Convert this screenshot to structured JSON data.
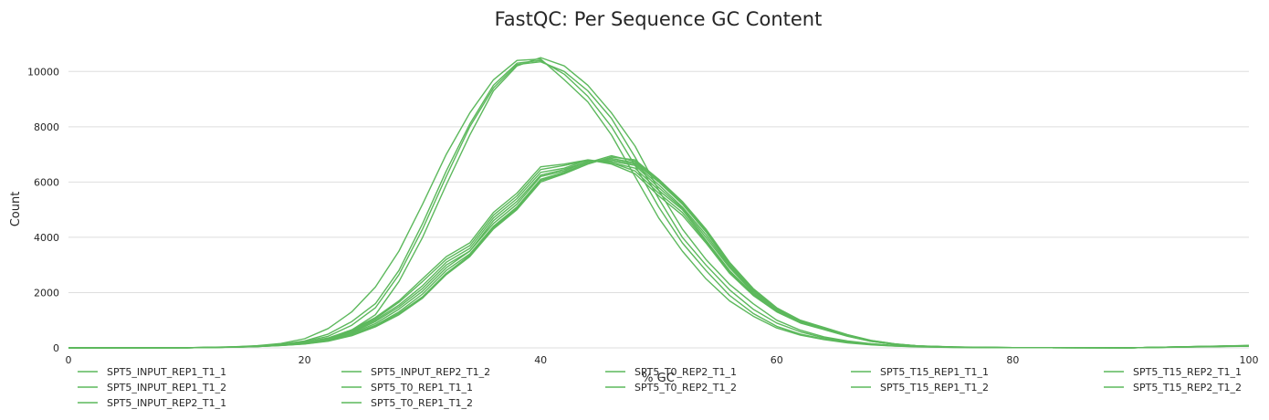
{
  "chart_data": {
    "type": "line",
    "title": "FastQC: Per Sequence GC Content",
    "xlabel": "% GC",
    "ylabel": "Count",
    "xlim": [
      0,
      100
    ],
    "ylim": [
      0,
      11000
    ],
    "xticks": [
      0,
      20,
      40,
      60,
      80,
      100
    ],
    "yticks": [
      0,
      2000,
      4000,
      6000,
      8000,
      10000
    ],
    "grid": true,
    "legend_position": "bottom",
    "line_color": "#5cb85c",
    "series": [
      {
        "name": "SPT5_INPUT_REP1_T1_1",
        "x": [
          0,
          10,
          14,
          16,
          18,
          20,
          22,
          24,
          26,
          28,
          30,
          32,
          34,
          36,
          38,
          40,
          42,
          44,
          46,
          48,
          50,
          52,
          54,
          56,
          58,
          60,
          62,
          64,
          66,
          68,
          70,
          72,
          75,
          80,
          90,
          100
        ],
        "y": [
          0,
          5,
          30,
          60,
          110,
          200,
          330,
          650,
          1200,
          2400,
          4000,
          5900,
          7700,
          9300,
          10200,
          10500,
          10200,
          9500,
          8500,
          7300,
          5700,
          4300,
          3200,
          2300,
          1600,
          1000,
          640,
          400,
          250,
          150,
          90,
          50,
          25,
          8,
          2,
          90
        ]
      },
      {
        "name": "SPT5_INPUT_REP1_T1_2",
        "x": [
          0,
          10,
          14,
          16,
          18,
          20,
          22,
          24,
          26,
          28,
          30,
          32,
          34,
          36,
          38,
          40,
          42,
          44,
          46,
          48,
          50,
          52,
          54,
          56,
          58,
          60,
          62,
          64,
          66,
          68,
          70,
          72,
          75,
          80,
          90,
          100
        ],
        "y": [
          0,
          5,
          35,
          70,
          130,
          250,
          500,
          950,
          1600,
          2800,
          4500,
          6400,
          8100,
          9500,
          10300,
          10400,
          9900,
          9100,
          8000,
          6600,
          5100,
          3800,
          2800,
          1900,
          1250,
          780,
          500,
          320,
          200,
          120,
          70,
          40,
          20,
          6,
          2,
          60
        ]
      },
      {
        "name": "SPT5_INPUT_REP2_T1_1",
        "x": [
          0,
          10,
          14,
          16,
          18,
          20,
          22,
          24,
          26,
          28,
          30,
          32,
          34,
          36,
          38,
          40,
          42,
          44,
          46,
          48,
          50,
          52,
          54,
          56,
          58,
          60,
          62,
          64,
          66,
          68,
          70,
          72,
          75,
          80,
          90,
          100
        ],
        "y": [
          0,
          5,
          40,
          80,
          160,
          330,
          700,
          1300,
          2200,
          3500,
          5200,
          7000,
          8500,
          9700,
          10400,
          10450,
          9700,
          8900,
          7700,
          6200,
          4700,
          3500,
          2500,
          1700,
          1150,
          720,
          460,
          300,
          180,
          110,
          65,
          35,
          18,
          6,
          2,
          80
        ]
      },
      {
        "name": "SPT5_INPUT_REP2_T1_2",
        "x": [
          0,
          10,
          14,
          16,
          18,
          20,
          22,
          24,
          26,
          28,
          30,
          32,
          34,
          36,
          38,
          40,
          42,
          44,
          46,
          48,
          50,
          52,
          54,
          56,
          58,
          60,
          62,
          64,
          66,
          68,
          70,
          72,
          75,
          80,
          90,
          100
        ],
        "y": [
          0,
          5,
          32,
          65,
          120,
          230,
          420,
          820,
          1450,
          2650,
          4300,
          6200,
          8000,
          9400,
          10250,
          10350,
          10000,
          9300,
          8300,
          6900,
          5400,
          4000,
          3000,
          2100,
          1400,
          900,
          580,
          360,
          220,
          130,
          80,
          45,
          22,
          7,
          2,
          70
        ]
      },
      {
        "name": "SPT5_T0_REP1_T1_1",
        "x": [
          0,
          10,
          14,
          16,
          18,
          20,
          22,
          24,
          26,
          28,
          30,
          32,
          34,
          36,
          38,
          40,
          42,
          44,
          46,
          48,
          50,
          52,
          54,
          56,
          58,
          60,
          62,
          64,
          66,
          68,
          70,
          72,
          75,
          80,
          90,
          100
        ],
        "y": [
          0,
          3,
          25,
          50,
          90,
          150,
          260,
          480,
          820,
          1300,
          1950,
          2800,
          3400,
          4400,
          5100,
          6100,
          6350,
          6700,
          6850,
          6700,
          6000,
          5200,
          4200,
          3000,
          2100,
          1400,
          980,
          720,
          460,
          260,
          140,
          70,
          30,
          9,
          2,
          80
        ]
      },
      {
        "name": "SPT5_T0_REP1_T1_2",
        "x": [
          0,
          10,
          14,
          16,
          18,
          20,
          22,
          24,
          26,
          28,
          30,
          32,
          34,
          36,
          38,
          40,
          42,
          44,
          46,
          48,
          50,
          52,
          54,
          56,
          58,
          60,
          62,
          64,
          66,
          68,
          70,
          72,
          75,
          80,
          90,
          100
        ],
        "y": [
          0,
          3,
          26,
          52,
          95,
          160,
          280,
          520,
          880,
          1400,
          2050,
          2900,
          3500,
          4500,
          5200,
          6200,
          6400,
          6750,
          6800,
          6650,
          5900,
          5100,
          4100,
          2950,
          2050,
          1380,
          960,
          700,
          450,
          250,
          135,
          68,
          30,
          9,
          2,
          70
        ]
      },
      {
        "name": "SPT5_T0_REP2_T1_1",
        "x": [
          0,
          10,
          14,
          16,
          18,
          20,
          22,
          24,
          26,
          28,
          30,
          32,
          34,
          36,
          38,
          40,
          42,
          44,
          46,
          48,
          50,
          52,
          54,
          56,
          58,
          60,
          62,
          64,
          66,
          68,
          70,
          72,
          75,
          80,
          90,
          100
        ],
        "y": [
          0,
          3,
          28,
          55,
          100,
          180,
          320,
          580,
          1000,
          1550,
          2250,
          3100,
          3600,
          4700,
          5400,
          6350,
          6500,
          6800,
          6700,
          6500,
          5700,
          5000,
          3900,
          2800,
          1950,
          1320,
          920,
          680,
          430,
          240,
          130,
          65,
          28,
          8,
          2,
          75
        ]
      },
      {
        "name": "SPT5_T0_REP2_T1_2",
        "x": [
          0,
          10,
          14,
          16,
          18,
          20,
          22,
          24,
          26,
          28,
          30,
          32,
          34,
          36,
          38,
          40,
          42,
          44,
          46,
          48,
          50,
          52,
          54,
          56,
          58,
          60,
          62,
          64,
          66,
          68,
          70,
          72,
          75,
          80,
          90,
          100
        ],
        "y": [
          0,
          3,
          27,
          54,
          98,
          170,
          300,
          550,
          950,
          1480,
          2150,
          3000,
          3500,
          4600,
          5300,
          6250,
          6450,
          6750,
          6750,
          6600,
          5800,
          5050,
          4000,
          2900,
          2000,
          1350,
          940,
          690,
          440,
          245,
          132,
          66,
          29,
          8,
          2,
          72
        ]
      },
      {
        "name": "SPT5_T15_REP1_T1_1",
        "x": [
          0,
          10,
          14,
          16,
          18,
          20,
          22,
          24,
          26,
          28,
          30,
          32,
          34,
          36,
          38,
          40,
          42,
          44,
          46,
          48,
          50,
          52,
          54,
          56,
          58,
          60,
          62,
          64,
          66,
          68,
          70,
          72,
          75,
          80,
          90,
          100
        ],
        "y": [
          0,
          3,
          24,
          48,
          85,
          140,
          240,
          440,
          760,
          1200,
          1800,
          2650,
          3300,
          4300,
          5000,
          6000,
          6300,
          6650,
          6900,
          6800,
          6100,
          5300,
          4300,
          3100,
          2150,
          1450,
          1000,
          740,
          480,
          270,
          145,
          72,
          32,
          10,
          2,
          85
        ]
      },
      {
        "name": "SPT5_T15_REP1_T1_2",
        "x": [
          0,
          10,
          14,
          16,
          18,
          20,
          22,
          24,
          26,
          28,
          30,
          32,
          34,
          36,
          38,
          40,
          42,
          44,
          46,
          48,
          50,
          52,
          54,
          56,
          58,
          60,
          62,
          64,
          66,
          68,
          70,
          72,
          75,
          80,
          90,
          100
        ],
        "y": [
          0,
          3,
          25,
          50,
          88,
          145,
          250,
          460,
          790,
          1250,
          1850,
          2700,
          3350,
          4350,
          5050,
          6050,
          6330,
          6700,
          6950,
          6750,
          6050,
          5250,
          4250,
          3050,
          2120,
          1420,
          990,
          730,
          470,
          265,
          142,
          70,
          31,
          9,
          2,
          78
        ]
      },
      {
        "name": "SPT5_T15_REP2_T1_1",
        "x": [
          0,
          10,
          14,
          16,
          18,
          20,
          22,
          24,
          26,
          28,
          30,
          32,
          34,
          36,
          38,
          40,
          42,
          44,
          46,
          48,
          50,
          52,
          54,
          56,
          58,
          60,
          62,
          64,
          66,
          68,
          70,
          72,
          75,
          80,
          90,
          100
        ],
        "y": [
          0,
          3,
          30,
          60,
          110,
          200,
          360,
          650,
          1100,
          1700,
          2500,
          3300,
          3800,
          4900,
          5600,
          6550,
          6650,
          6800,
          6650,
          6300,
          5500,
          4800,
          3800,
          2700,
          1900,
          1300,
          900,
          660,
          420,
          235,
          128,
          64,
          28,
          8,
          2,
          70
        ]
      },
      {
        "name": "SPT5_T15_REP2_T1_2",
        "x": [
          0,
          10,
          14,
          16,
          18,
          20,
          22,
          24,
          26,
          28,
          30,
          32,
          34,
          36,
          38,
          40,
          42,
          44,
          46,
          48,
          50,
          52,
          54,
          56,
          58,
          60,
          62,
          64,
          66,
          68,
          70,
          72,
          75,
          80,
          90,
          100
        ],
        "y": [
          0,
          3,
          29,
          58,
          105,
          190,
          340,
          620,
          1050,
          1650,
          2400,
          3200,
          3700,
          4800,
          5500,
          6450,
          6600,
          6780,
          6700,
          6400,
          5600,
          4900,
          3850,
          2750,
          1920,
          1310,
          910,
          670,
          425,
          238,
          130,
          65,
          28,
          8,
          2,
          72
        ]
      }
    ]
  }
}
